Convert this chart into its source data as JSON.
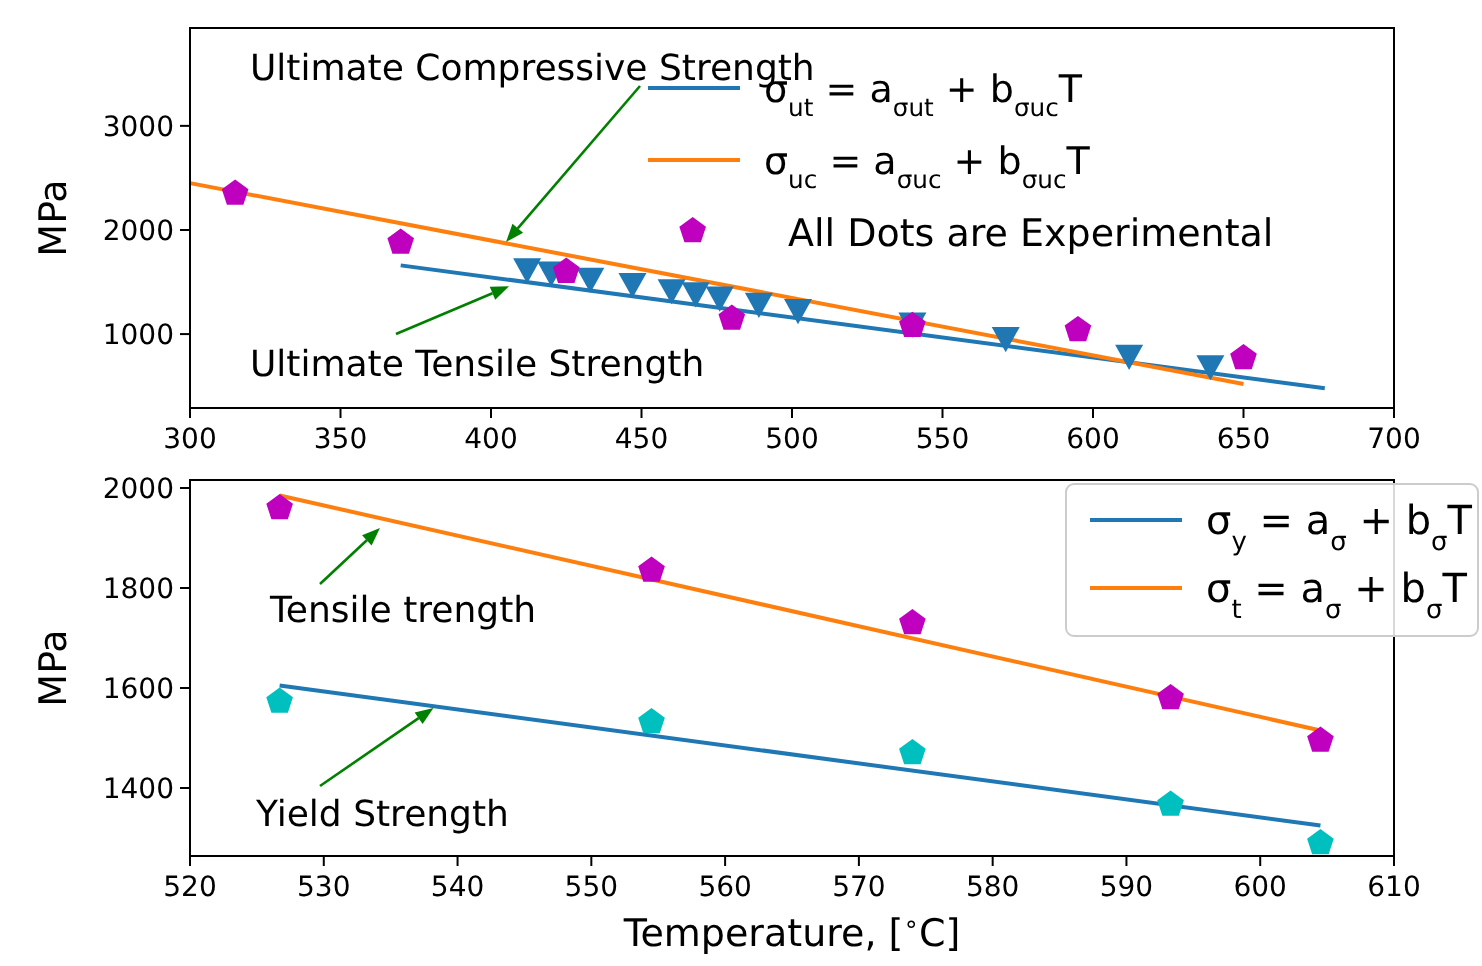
{
  "chart_data": [
    {
      "type": "scatter",
      "ylabel": "MPa",
      "xlim": [
        300,
        700
      ],
      "xticks": [
        300,
        350,
        400,
        450,
        500,
        550,
        600,
        650,
        700
      ],
      "ylim": [
        290,
        3940
      ],
      "yticks": [
        1000,
        2000,
        3000
      ],
      "legend": "top",
      "grid": false,
      "series": [
        {
          "type": "line",
          "name": "σ$_{ut}$ = a$_{σut}$ + b$_{σuc}$T",
          "color": "#1f77b4",
          "x": [
            370,
            677
          ],
          "values": [
            1660,
            480
          ],
          "marker": "none",
          "line_style": "solid"
        },
        {
          "type": "line",
          "name": "σ$_{uc}$ = a$_{σuc}$ + b$_{σuc}$T",
          "color": "#ff7f0e",
          "x": [
            300,
            650
          ],
          "values": [
            2450,
            520
          ],
          "marker": "none",
          "line_style": "solid"
        },
        {
          "color": "#1f77b4",
          "marker": "triangle",
          "x": [
            412,
            420,
            433,
            447,
            460,
            468,
            476,
            489,
            502,
            540,
            571,
            612,
            639
          ],
          "values": [
            1620,
            1590,
            1530,
            1480,
            1420,
            1390,
            1350,
            1290,
            1230,
            1100,
            960,
            790,
            690
          ]
        },
        {
          "color": "#bf00bf",
          "x": [
            315,
            370,
            425,
            467,
            480,
            540,
            595,
            650
          ],
          "values": [
            2350,
            1880,
            1600,
            1990,
            1150,
            1080,
            1040,
            770
          ]
        }
      ],
      "annotations": [
        {
          "text": "Ultimate Compressive Strength",
          "x": 405,
          "y": 1885
        },
        {
          "text": "Ultimate Tensile Strength",
          "x": 406,
          "y": 1460
        },
        "All Dots are Experimental"
      ]
    },
    {
      "type": "scatter",
      "ylabel": "MPa",
      "xlabel": "Temperature, [$^{∘}$C]",
      "xlim": [
        520,
        610
      ],
      "xticks": [
        520,
        530,
        540,
        550,
        560,
        570,
        580,
        590,
        600,
        610
      ],
      "ylim": [
        1264,
        2016
      ],
      "yticks": [
        1400,
        1600,
        1800,
        2000
      ],
      "legend": "top right",
      "grid": false,
      "series": [
        {
          "type": "line",
          "name": "σ$_{y}$ = a$_{σ}$ + b$_{σ}$T",
          "color": "#1f77b4",
          "x": [
            526.7,
            604.5
          ],
          "values": [
            1605,
            1325
          ],
          "marker": "none",
          "line_style": "solid"
        },
        {
          "type": "line",
          "name": "σ$_{t}$ = a$_{σ}$ + b$_{σ}$T",
          "color": "#ff7f0e",
          "x": [
            526.7,
            604.5
          ],
          "values": [
            1985,
            1515
          ],
          "marker": "none",
          "line_style": "solid"
        },
        {
          "color": "#bf00bf",
          "x": [
            526.7,
            554.5,
            574,
            593.3,
            604.5
          ],
          "values": [
            1960,
            1835,
            1730,
            1580,
            1495
          ]
        },
        {
          "color": "#00bfbf",
          "x": [
            526.7,
            554.5,
            574,
            593.3,
            604.5
          ],
          "values": [
            1573,
            1532,
            1470,
            1367,
            1290
          ]
        }
      ],
      "annotations": [
        {
          "text": "Tensile trength",
          "x": 534.2,
          "y": 1920
        },
        {
          "text": "Yield Strength",
          "x": 538.2,
          "y": 1560
        }
      ]
    }
  ]
}
